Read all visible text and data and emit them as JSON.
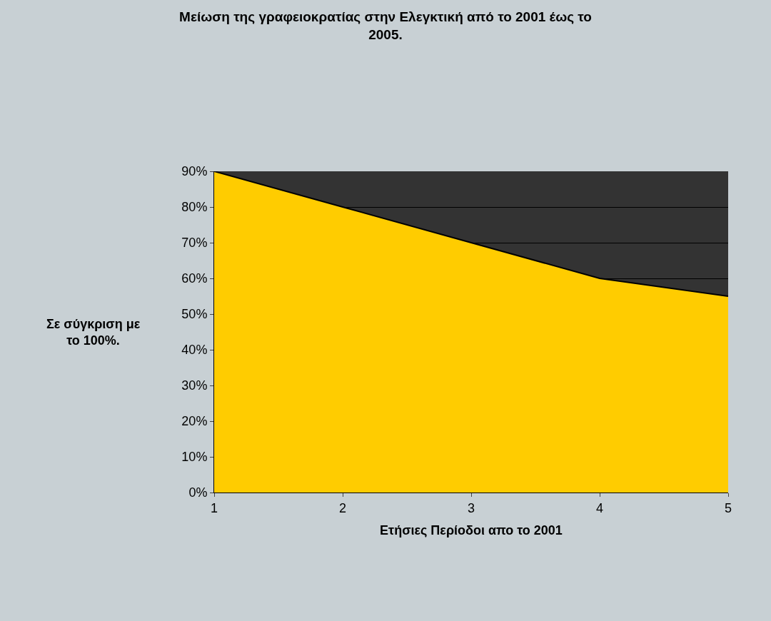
{
  "chart_data": {
    "type": "area",
    "title": "Μείωση της γραφειοκρατίας στην Ελεγκτική από το 2001 έως το 2005.",
    "xlabel": "Ετήσιες Περίοδοι απο το 2001",
    "ylabel": "Σε σύγκριση με το 100%.",
    "x": [
      1,
      2,
      3,
      4,
      5
    ],
    "series": [
      {
        "color": "#ffcc00",
        "values": [
          0.9,
          0.8,
          0.7,
          0.6,
          0.55
        ]
      }
    ],
    "xlim": [
      1,
      5
    ],
    "xticks": [
      1,
      2,
      3,
      4,
      5
    ],
    "ylim": [
      0,
      0.9
    ],
    "yticks": [
      {
        "value": 0,
        "label": "0%"
      },
      {
        "value": 0.1,
        "label": "10%"
      },
      {
        "value": 0.2,
        "label": "20%"
      },
      {
        "value": 0.3,
        "label": "30%"
      },
      {
        "value": 0.4,
        "label": "40%"
      },
      {
        "value": 0.5,
        "label": "50%"
      },
      {
        "value": 0.6,
        "label": "60%"
      },
      {
        "value": 0.7,
        "label": "70%"
      },
      {
        "value": 0.8,
        "label": "80%"
      },
      {
        "value": 0.9,
        "label": "90%"
      }
    ],
    "grid": "y"
  }
}
